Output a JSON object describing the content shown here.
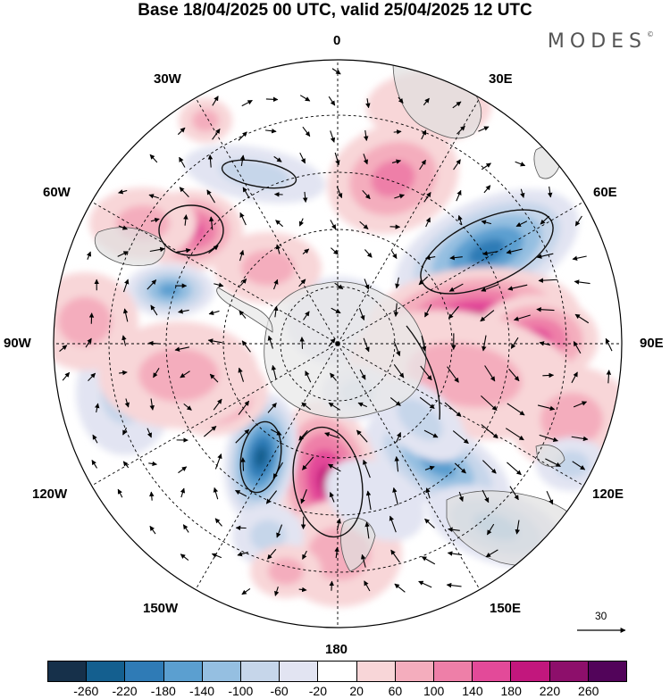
{
  "title": "Base 18/04/2025 00 UTC, valid 25/04/2025 12 UTC",
  "brand": "MODES",
  "brand_mark": "©",
  "map": {
    "projection": "south-polar-stereographic",
    "longitude_labels": {
      "top": "0",
      "top_right": "30E",
      "right_upper": "60E",
      "right": "90E",
      "right_lower": "120E",
      "bottom_right": "150E",
      "bottom": "180",
      "bottom_left": "150W",
      "left_lower": "120W",
      "left": "90W",
      "left_upper": "60W",
      "top_left": "30W"
    },
    "vector_reference": "30",
    "anomaly_centers": [
      {
        "region": "south-indian-ocean-east",
        "sign": "negative",
        "approx_value": -180
      },
      {
        "region": "indian-ocean-south",
        "sign": "positive",
        "approx_value": 180
      },
      {
        "region": "south-of-australia",
        "sign": "negative",
        "approx_value": -140
      },
      {
        "region": "south-of-new-zealand",
        "sign": "positive",
        "approx_value": 200
      },
      {
        "region": "south-pacific-west",
        "sign": "negative",
        "approx_value": -220
      },
      {
        "region": "south-pacific-east",
        "sign": "positive",
        "approx_value": 140
      },
      {
        "region": "south-atlantic-west",
        "sign": "positive",
        "approx_value": 140
      },
      {
        "region": "south-atlantic-central",
        "sign": "positive",
        "approx_value": 120
      },
      {
        "region": "drake-passage",
        "sign": "negative",
        "approx_value": -140
      }
    ]
  },
  "colorbar": {
    "colors": [
      "#16304a",
      "#145f8f",
      "#2f7bb6",
      "#5b9fd0",
      "#95bfe1",
      "#c6d6ea",
      "#e2e4f2",
      "#ffffff",
      "#f8d6d8",
      "#f4adbd",
      "#ee7fa8",
      "#e34a99",
      "#c2177d",
      "#8d0f6b",
      "#52045a"
    ],
    "tick_labels": [
      "-260",
      "-220",
      "-180",
      "-140",
      "-100",
      "-60",
      "-20",
      "20",
      "60",
      "100",
      "140",
      "180",
      "220",
      "260"
    ]
  }
}
